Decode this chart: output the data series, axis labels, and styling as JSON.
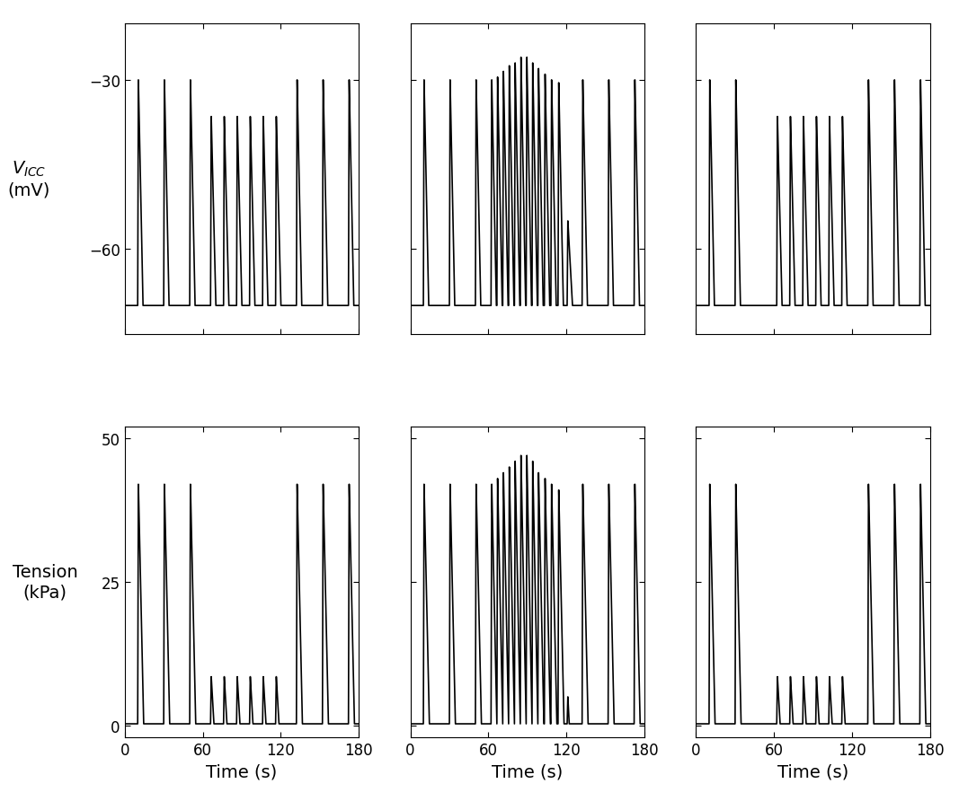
{
  "line_color": "#000000",
  "line_width": 1.2,
  "background_color": "#ffffff",
  "fig_width": 10.67,
  "fig_height": 9.03,
  "dpi": 100,
  "v_ylim": [
    -75,
    -20
  ],
  "v_yticks": [
    -60,
    -30
  ],
  "t_ylim": [
    -2,
    52
  ],
  "t_yticks": [
    0,
    25,
    50
  ],
  "xlim": [
    0,
    180
  ],
  "xticks": [
    0,
    60,
    120,
    180
  ],
  "xlabel": "Time (s)",
  "ylabel_v_line1": "$V_{ICC}$",
  "ylabel_v_line2": "(mV)",
  "ylabel_t_line1": "Tension",
  "ylabel_t_line2": "(kPa)",
  "label_fontsize": 14,
  "tick_fontsize": 12,
  "v_base": -70.0,
  "v_peak_full": -30.0,
  "v_peak_sub": -36.5,
  "v_peak_excit_max": -25.0,
  "t_base": 0.3,
  "t_peak_full": 42.0,
  "t_peak_sub": 8.5,
  "spike_rise_s": 0.5,
  "spike_fall_s": 3.5,
  "tension_rise_s": 0.5,
  "tension_fall_full_s": 4.0,
  "tension_fall_sub_s": 2.0,
  "col1_pre_spikes": [
    10.0,
    30.0,
    50.0
  ],
  "col1_stim_spikes": [
    66.0,
    76.0,
    86.0,
    96.0,
    106.0,
    116.0
  ],
  "col1_post_spikes": [
    132.0,
    152.0,
    172.0
  ],
  "col2_pre_spikes": [
    10.0,
    30.0,
    50.0
  ],
  "col2_stim_spikes": [
    62.0,
    66.5,
    71.0,
    75.5,
    80.0,
    84.5,
    89.0,
    93.5,
    98.0,
    103.0,
    108.0,
    113.5
  ],
  "col2_stim_v_peaks": [
    -30.0,
    -29.5,
    -28.5,
    -27.5,
    -27.0,
    -26.0,
    -26.0,
    -27.0,
    -28.0,
    -29.0,
    -30.0,
    -30.5
  ],
  "col2_stim_t_peaks": [
    42.0,
    43.0,
    44.0,
    45.0,
    46.0,
    47.0,
    47.0,
    46.0,
    44.0,
    43.0,
    42.0,
    41.0
  ],
  "col2_post_stim_spike": [
    120.5
  ],
  "col2_post_stim_v": [
    -55.0
  ],
  "col2_post_stim_t": [
    5.0
  ],
  "col2_post_spikes": [
    132.0,
    152.0,
    172.0
  ],
  "col3_pre_spikes": [
    10.0,
    30.0
  ],
  "col3_stim_spikes": [
    62.0,
    72.0,
    82.0,
    92.0,
    102.0,
    112.0
  ],
  "col3_stim_v_peaks": [
    -36.5,
    -36.5,
    -36.5,
    -36.5,
    -36.5,
    -36.5
  ],
  "col3_stim_t_peaks": [
    8.5,
    8.5,
    8.5,
    8.5,
    8.5,
    8.5
  ],
  "col3_post_spikes": [
    132.0,
    152.0,
    172.0
  ]
}
